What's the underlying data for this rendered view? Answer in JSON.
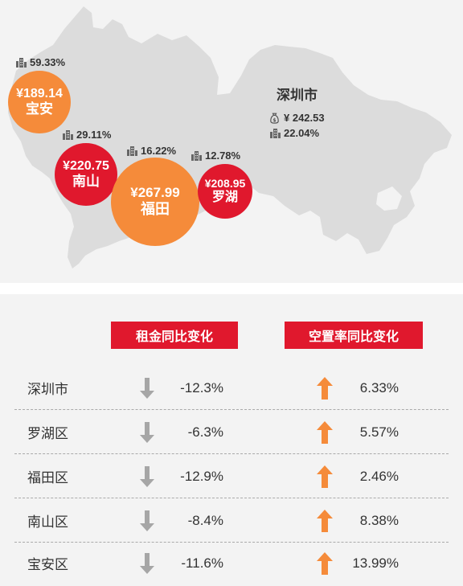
{
  "map": {
    "city": {
      "name": "深圳市",
      "rent": "¥ 242.53",
      "vacancy": "22.04%",
      "rent_icon": "money-bag-icon",
      "vacancy_icon": "building-icon"
    },
    "districts": [
      {
        "id": "baoan",
        "name": "宝安",
        "rent": "¥189.14",
        "vacancy": "59.33%",
        "color": "#f58b3a"
      },
      {
        "id": "nanshan",
        "name": "南山",
        "rent": "¥220.75",
        "vacancy": "29.11%",
        "color": "#e0182d"
      },
      {
        "id": "futian",
        "name": "福田",
        "rent": "¥267.99",
        "vacancy": "16.22%",
        "color": "#f58b3a"
      },
      {
        "id": "luohu",
        "name": "罗湖",
        "rent": "¥208.95",
        "vacancy": "12.78%",
        "color": "#e0182d"
      }
    ]
  },
  "table": {
    "headers": {
      "rent_change": "租金同比变化",
      "vacancy_change": "空置率同比变化"
    },
    "rows": [
      {
        "name": "深圳市",
        "rent_change": "-12.3%",
        "vacancy_change": "6.33%"
      },
      {
        "name": "罗湖区",
        "rent_change": "-6.3%",
        "vacancy_change": "5.57%"
      },
      {
        "name": "福田区",
        "rent_change": "-12.9%",
        "vacancy_change": "2.46%"
      },
      {
        "name": "南山区",
        "rent_change": "-8.4%",
        "vacancy_change": "8.38%"
      },
      {
        "name": "宝安区",
        "rent_change": "-11.6%",
        "vacancy_change": "13.99%"
      }
    ],
    "down_icon": "down-arrow-icon",
    "up_icon": "up-arrow-icon",
    "colors": {
      "down_arrow": "#a6a6a6",
      "up_arrow": "#f58b3a",
      "header_bg": "#e0182d"
    }
  }
}
